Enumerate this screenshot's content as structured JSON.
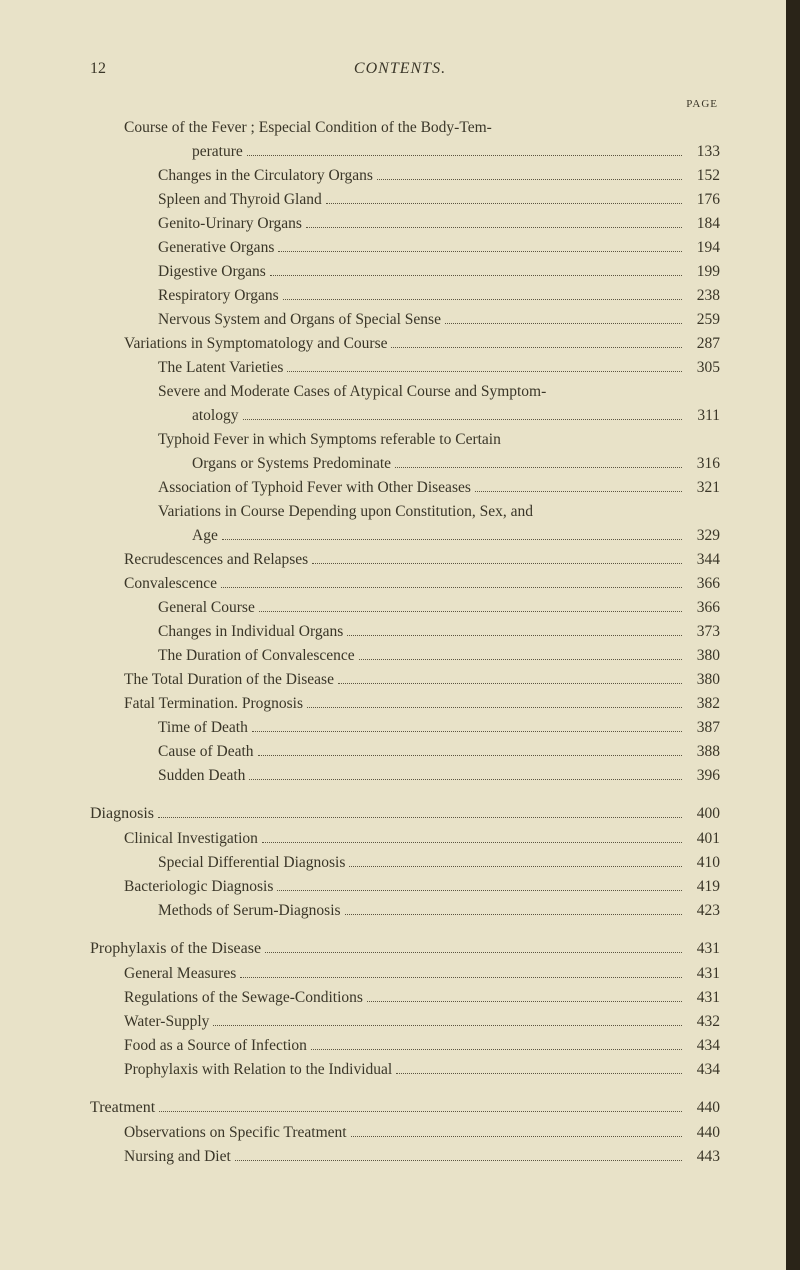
{
  "header": {
    "page_number": "12",
    "running_title": "CONTENTS.",
    "page_label": "PAGE"
  },
  "entries": [
    {
      "indent": 1,
      "text": "Course of the Fever ; Especial Condition of the Body-Tem-",
      "page": "",
      "nodots": true
    },
    {
      "indent": 3,
      "text": "perature",
      "page": "133",
      "cont": true
    },
    {
      "indent": 2,
      "text": "Changes in the Circulatory Organs",
      "page": "152"
    },
    {
      "indent": 2,
      "text": "Spleen and Thyroid Gland",
      "page": "176"
    },
    {
      "indent": 2,
      "text": "Genito-Urinary Organs",
      "page": "184"
    },
    {
      "indent": 2,
      "text": "Generative Organs",
      "page": "194"
    },
    {
      "indent": 2,
      "text": "Digestive Organs",
      "page": "199"
    },
    {
      "indent": 2,
      "text": "Respiratory Organs",
      "page": "238"
    },
    {
      "indent": 2,
      "text": "Nervous System and Organs of Special Sense",
      "page": "259"
    },
    {
      "indent": 1,
      "text": "Variations in Symptomatology and Course",
      "page": "287"
    },
    {
      "indent": 2,
      "text": "The Latent Varieties",
      "page": "305"
    },
    {
      "indent": 2,
      "text": "Severe and Moderate Cases of Atypical Course and Symptom-",
      "page": "",
      "nodots": true
    },
    {
      "indent": 3,
      "text": "atology",
      "page": "311",
      "cont": true
    },
    {
      "indent": 2,
      "text": "Typhoid Fever in which Symptoms referable to Certain",
      "page": "",
      "nodots": true
    },
    {
      "indent": 3,
      "text": "Organs or Systems Predominate",
      "page": "316",
      "cont": true
    },
    {
      "indent": 2,
      "text": "Association of Typhoid Fever with Other Diseases",
      "page": "321"
    },
    {
      "indent": 2,
      "text": "Variations in Course Depending upon Constitution, Sex, and",
      "page": "",
      "nodots": true
    },
    {
      "indent": 3,
      "text": "Age",
      "page": "329",
      "cont": true
    },
    {
      "indent": 1,
      "text": "Recrudescences and Relapses",
      "page": "344"
    },
    {
      "indent": 1,
      "text": "Convalescence",
      "page": "366"
    },
    {
      "indent": 2,
      "text": "General Course",
      "page": "366"
    },
    {
      "indent": 2,
      "text": "Changes in Individual Organs",
      "page": "373"
    },
    {
      "indent": 2,
      "text": "The Duration of Convalescence",
      "page": "380"
    },
    {
      "indent": 1,
      "text": "The Total Duration of the Disease",
      "page": "380"
    },
    {
      "indent": 1,
      "text": "Fatal Termination.   Prognosis",
      "page": "382"
    },
    {
      "indent": 2,
      "text": "Time of Death",
      "page": "387"
    },
    {
      "indent": 2,
      "text": "Cause of Death",
      "page": "388"
    },
    {
      "indent": 2,
      "text": "Sudden Death",
      "page": "396"
    },
    {
      "indent": 0,
      "text": "Diagnosis",
      "page": "400",
      "section": true
    },
    {
      "indent": 1,
      "text": "Clinical Investigation",
      "page": "401"
    },
    {
      "indent": 2,
      "text": "Special Differential Diagnosis",
      "page": "410"
    },
    {
      "indent": 1,
      "text": "Bacteriologic Diagnosis",
      "page": "419"
    },
    {
      "indent": 2,
      "text": "Methods of Serum-Diagnosis",
      "page": "423"
    },
    {
      "indent": 0,
      "text": "Prophylaxis of the Disease",
      "page": "431",
      "section": true
    },
    {
      "indent": 1,
      "text": "General Measures",
      "page": "431"
    },
    {
      "indent": 1,
      "text": "Regulations of the Sewage-Conditions",
      "page": "431"
    },
    {
      "indent": 1,
      "text": "Water-Supply",
      "page": "432"
    },
    {
      "indent": 1,
      "text": "Food as a Source of Infection",
      "page": "434"
    },
    {
      "indent": 1,
      "text": "Prophylaxis with Relation to the Individual",
      "page": "434"
    },
    {
      "indent": 0,
      "text": "Treatment",
      "page": "440",
      "section": true
    },
    {
      "indent": 1,
      "text": "Observations on Specific Treatment",
      "page": "440"
    },
    {
      "indent": 1,
      "text": "Nursing and Diet",
      "page": "443"
    }
  ]
}
